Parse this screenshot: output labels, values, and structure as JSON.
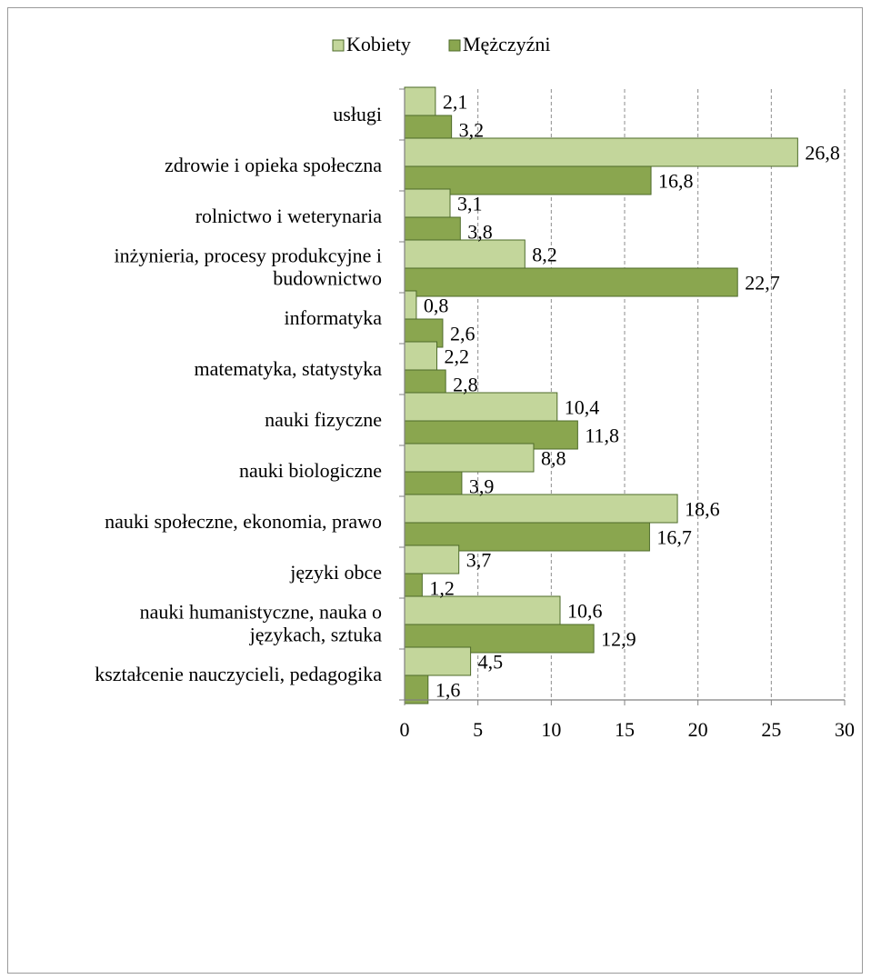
{
  "chart_data": {
    "type": "bar",
    "orientation": "horizontal",
    "title": "",
    "xlabel": "",
    "ylabel": "",
    "xlim": [
      0,
      30
    ],
    "x_ticks": [
      "0",
      "5",
      "10",
      "15",
      "20",
      "25",
      "30"
    ],
    "grid": "vertical dashed",
    "legend_position": "top",
    "categories": [
      [
        "usługi"
      ],
      [
        "zdrowie i opieka społeczna"
      ],
      [
        "rolnictwo i weterynaria"
      ],
      [
        "inżynieria, procesy produkcyjne i",
        "budownictwo"
      ],
      [
        "informatyka"
      ],
      [
        "matematyka, statystyka"
      ],
      [
        "nauki fizyczne"
      ],
      [
        "nauki biologiczne"
      ],
      [
        "nauki społeczne, ekonomia, prawo"
      ],
      [
        "języki obce"
      ],
      [
        "nauki humanistyczne, nauka o",
        "językach, sztuka"
      ],
      [
        "kształcenie nauczycieli, pedagogika"
      ]
    ],
    "series": [
      {
        "name": "Kobiety",
        "color": "#c3d69b",
        "values": [
          2.1,
          26.8,
          3.1,
          8.2,
          0.8,
          2.2,
          10.4,
          8.8,
          18.6,
          3.7,
          10.6,
          4.5
        ],
        "labels": [
          "2,1",
          "26,8",
          "3,1",
          "8,2",
          "0,8",
          "2,2",
          "10,4",
          "8,8",
          "18,6",
          "3,7",
          "10,6",
          "4,5"
        ]
      },
      {
        "name": "Mężczyźni",
        "color": "#8aa64f",
        "values": [
          3.2,
          16.8,
          3.8,
          22.7,
          2.6,
          2.8,
          11.8,
          3.9,
          16.7,
          1.2,
          12.9,
          1.6
        ],
        "labels": [
          "3,2",
          "16,8",
          "3,8",
          "22,7",
          "2,6",
          "2,8",
          "11,8",
          "3,9",
          "16,7",
          "1,2",
          "12,9",
          "1,6"
        ]
      }
    ]
  }
}
